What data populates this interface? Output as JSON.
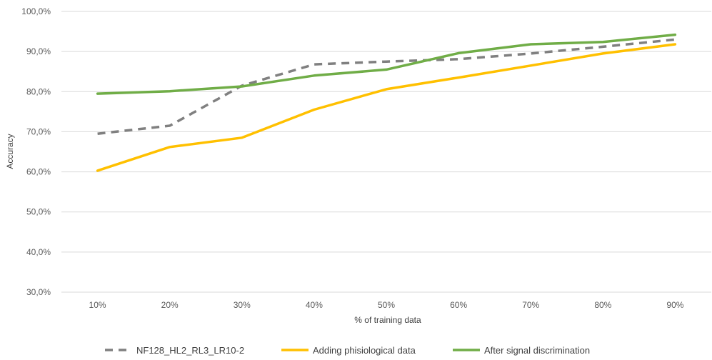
{
  "chart_data": {
    "type": "line",
    "title": "",
    "xlabel": "% of training data",
    "ylabel": "Accuracy",
    "categories": [
      "10%",
      "20%",
      "30%",
      "40%",
      "50%",
      "60%",
      "70%",
      "80%",
      "90%"
    ],
    "y_ticks": [
      30,
      40,
      50,
      60,
      70,
      80,
      90,
      100
    ],
    "y_tick_labels": [
      "30,0%",
      "40,0%",
      "50,0%",
      "60,0%",
      "70,0%",
      "80,0%",
      "90,0%",
      "100,0%"
    ],
    "ylim": [
      30,
      100
    ],
    "grid": true,
    "legend_position": "bottom",
    "series": [
      {
        "name": "NF128_HL2_RL3_LR10-2",
        "color": "#808080",
        "dash": true,
        "values": [
          69.5,
          71.5,
          81.5,
          86.8,
          87.5,
          88.1,
          89.5,
          91.2,
          93.0
        ]
      },
      {
        "name": "Adding phisiological data",
        "color": "#FFC000",
        "dash": false,
        "values": [
          60.3,
          66.2,
          68.5,
          75.5,
          80.6,
          83.5,
          86.5,
          89.5,
          91.8
        ]
      },
      {
        "name": "After signal discrimination",
        "color": "#70AD47",
        "dash": false,
        "values": [
          79.5,
          80.1,
          81.3,
          84.0,
          85.5,
          89.6,
          91.8,
          92.4,
          94.2
        ]
      }
    ]
  }
}
